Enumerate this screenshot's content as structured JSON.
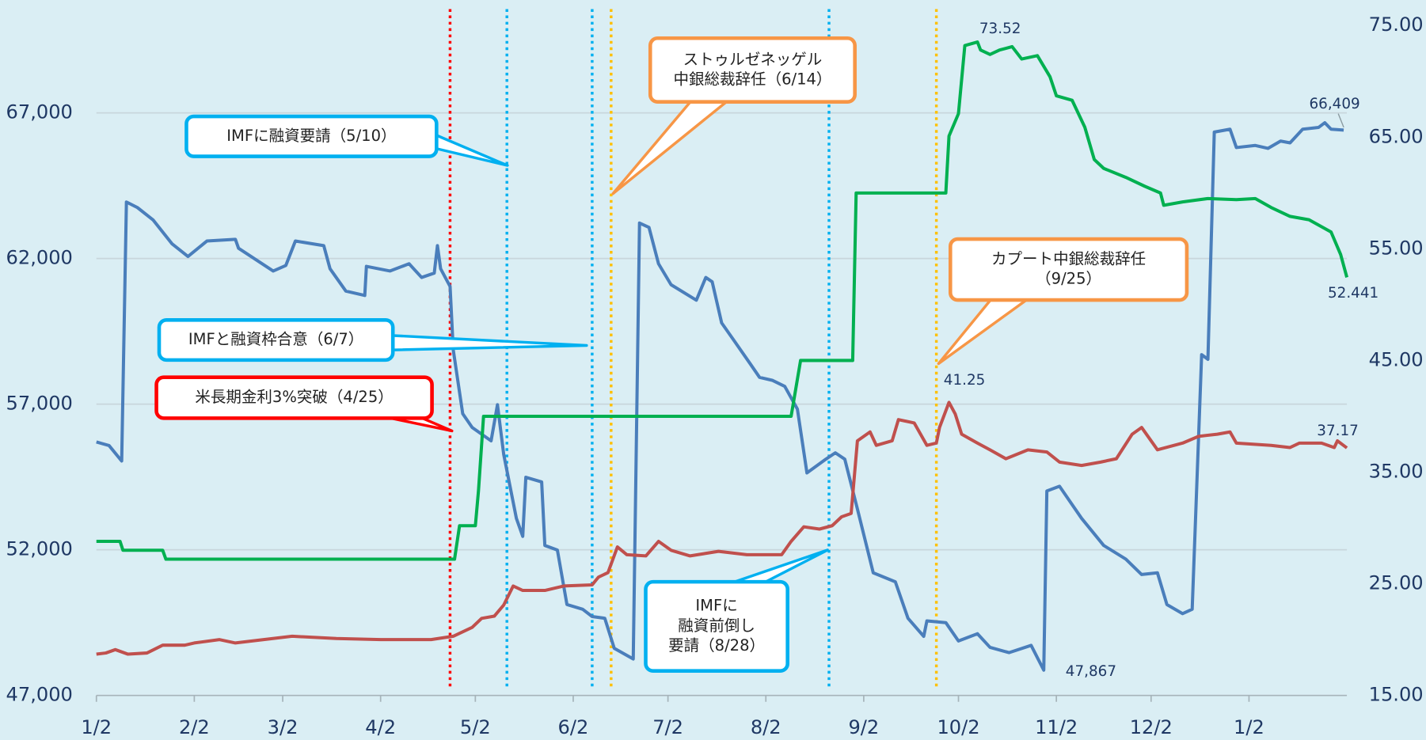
{
  "chart_data": {
    "type": "line",
    "xlim": [
      0,
      396
    ],
    "xticks": [
      {
        "value": 0,
        "label": "1/2"
      },
      {
        "value": 31,
        "label": "2/2"
      },
      {
        "value": 59,
        "label": "3/2"
      },
      {
        "value": 90,
        "label": "4/2"
      },
      {
        "value": 120,
        "label": "5/2"
      },
      {
        "value": 151,
        "label": "6/2"
      },
      {
        "value": 181,
        "label": "7/2"
      },
      {
        "value": 212,
        "label": "8/2"
      },
      {
        "value": 243,
        "label": "9/2"
      },
      {
        "value": 273,
        "label": "10/2"
      },
      {
        "value": 304,
        "label": "11/2"
      },
      {
        "value": 334,
        "label": "12/2"
      },
      {
        "value": 365,
        "label": "1/2"
      }
    ],
    "ylim": [
      47000,
      70000
    ],
    "yticks": [
      {
        "value": 47000,
        "label": "47,000"
      },
      {
        "value": 52000,
        "label": "52,000"
      },
      {
        "value": 57000,
        "label": "57,000"
      },
      {
        "value": 62000,
        "label": "62,000"
      },
      {
        "value": 67000,
        "label": "67,000"
      }
    ],
    "y2lim": [
      15,
      75
    ],
    "y2ticks": [
      {
        "value": 15,
        "label": "15.00"
      },
      {
        "value": 25,
        "label": "25.00"
      },
      {
        "value": 35,
        "label": "35.00"
      },
      {
        "value": 45,
        "label": "45.00"
      },
      {
        "value": 55,
        "label": "55.00"
      },
      {
        "value": 65,
        "label": "65.00"
      },
      {
        "value": 75,
        "label": "75.00"
      }
    ],
    "grid": true,
    "series": [
      {
        "color": "#4a7ebb",
        "axis": "y",
        "x": [
          0,
          4,
          8,
          9.5,
          13,
          18,
          24,
          29,
          35,
          44,
          45,
          56,
          60,
          63,
          72,
          74,
          79,
          85,
          85.5,
          93,
          99,
          103,
          107,
          108,
          109,
          112,
          113,
          116,
          119,
          125,
          127,
          129,
          133,
          135,
          136,
          141,
          142,
          146,
          149,
          154,
          157,
          161,
          164,
          170,
          172,
          175,
          178,
          182,
          190,
          193,
          195,
          198,
          202,
          207,
          210,
          214,
          218,
          222,
          225,
          231,
          234,
          237,
          241,
          246,
          253,
          257,
          262,
          263,
          269,
          273,
          279,
          283,
          289,
          296,
          300,
          301,
          305,
          312,
          319,
          326,
          331,
          336,
          339,
          344,
          347,
          350,
          352,
          354,
          359,
          361,
          367,
          371,
          375,
          378,
          382,
          387,
          389,
          391,
          395
        ],
        "values": [
          55700,
          55580,
          55050,
          63940,
          63750,
          63320,
          62500,
          62070,
          62600,
          62660,
          62350,
          61570,
          61760,
          62600,
          62440,
          61650,
          60880,
          60730,
          61730,
          61570,
          61820,
          61350,
          61500,
          62440,
          61650,
          61040,
          58860,
          56670,
          56200,
          55740,
          56980,
          55270,
          53080,
          52460,
          54490,
          54330,
          52150,
          51990,
          50120,
          49960,
          49710,
          49650,
          48620,
          48250,
          63220,
          63070,
          61820,
          61100,
          60570,
          61350,
          61200,
          59790,
          59170,
          58390,
          57920,
          57820,
          57610,
          56830,
          54640,
          55110,
          55330,
          55110,
          53400,
          51210,
          50900,
          49650,
          49030,
          49560,
          49500,
          48870,
          49120,
          48650,
          48470,
          48720,
          47867,
          54020,
          54180,
          53080,
          52150,
          51680,
          51150,
          51210,
          50120,
          49810,
          49960,
          58700,
          58540,
          66340,
          66440,
          65810,
          65880,
          65780,
          66030,
          65970,
          66440,
          66500,
          66660,
          66440,
          66409
        ],
        "value_labels": [
          null,
          null,
          null,
          null,
          null,
          null,
          null,
          null,
          null,
          null,
          null,
          null,
          null,
          null,
          null,
          null,
          null,
          null,
          null,
          null,
          null,
          null,
          null,
          null,
          null,
          null,
          null,
          null,
          null,
          null,
          null,
          null,
          null,
          null,
          null,
          null,
          null,
          null,
          null,
          null,
          null,
          null,
          null,
          null,
          null,
          null,
          null,
          null,
          null,
          null,
          null,
          null,
          null,
          null,
          null,
          null,
          null,
          null,
          null,
          null,
          null,
          null,
          null,
          null,
          null,
          null,
          null,
          null,
          null,
          null,
          null,
          null,
          null,
          null,
          "47,867",
          null,
          null,
          null,
          null,
          null,
          null,
          null,
          null,
          null,
          null,
          null,
          null,
          null,
          null,
          null,
          null,
          null,
          null,
          null,
          null,
          null,
          null,
          null,
          "66,409"
        ]
      },
      {
        "color": "#00b050",
        "axis": "y2",
        "x": [
          0,
          7.5,
          8.4,
          21,
          22,
          113.4,
          115,
          120,
          121,
          122.6,
          220,
          223,
          239.5,
          240.6,
          269,
          270,
          273,
          275,
          279,
          280,
          283,
          286,
          290,
          293,
          298,
          302,
          304,
          309,
          313,
          316,
          319,
          326,
          332,
          337,
          338,
          344,
          352,
          361,
          367,
          372,
          378,
          384,
          391,
          394,
          396
        ],
        "values": [
          28.8,
          28.8,
          28.0,
          28.0,
          27.2,
          27.2,
          30.2,
          30.2,
          33.3,
          40.0,
          40.0,
          45.0,
          45.0,
          60.0,
          60.0,
          65.1,
          67.1,
          73.2,
          73.52,
          72.8,
          72.4,
          72.8,
          73.1,
          72.0,
          72.3,
          70.4,
          68.7,
          68.3,
          65.9,
          63.0,
          62.2,
          61.4,
          60.6,
          60.0,
          58.9,
          59.2,
          59.5,
          59.4,
          59.5,
          58.7,
          57.9,
          57.6,
          56.5,
          54.5,
          52.441
        ],
        "value_labels": [
          null,
          null,
          null,
          null,
          null,
          null,
          null,
          null,
          null,
          null,
          null,
          null,
          null,
          null,
          null,
          null,
          null,
          null,
          "73.52",
          null,
          null,
          null,
          null,
          null,
          null,
          null,
          null,
          null,
          null,
          null,
          null,
          null,
          null,
          null,
          null,
          null,
          null,
          null,
          null,
          null,
          null,
          null,
          null,
          null,
          "52.441"
        ]
      },
      {
        "color": "#c0504d",
        "axis": "y2",
        "x": [
          0,
          3,
          6,
          10,
          16,
          21,
          28,
          31,
          39,
          44,
          53,
          62,
          76,
          90,
          106,
          113,
          119,
          122,
          126,
          129,
          132,
          135,
          142,
          148,
          157,
          159,
          162,
          165,
          168,
          174,
          178,
          182,
          188,
          197,
          206,
          217,
          220,
          224,
          229,
          233,
          236,
          239,
          241,
          245,
          247,
          252,
          254,
          259,
          263,
          266,
          267,
          270,
          272,
          274,
          279,
          283,
          288,
          295,
          301,
          305,
          312,
          318,
          323,
          328,
          331,
          336,
          344,
          349,
          355,
          359,
          361,
          372,
          378,
          381,
          388,
          392,
          393,
          396
        ],
        "values": [
          18.7,
          18.8,
          19.1,
          18.7,
          18.8,
          19.5,
          19.5,
          19.7,
          20.0,
          19.7,
          20.0,
          20.3,
          20.1,
          20.0,
          20.0,
          20.3,
          21.1,
          21.9,
          22.1,
          23.1,
          24.8,
          24.4,
          24.4,
          24.8,
          24.9,
          25.6,
          26.0,
          28.3,
          27.6,
          27.5,
          28.8,
          28.0,
          27.5,
          27.9,
          27.6,
          27.6,
          28.8,
          30.1,
          29.9,
          30.2,
          31.0,
          31.3,
          37.8,
          38.6,
          37.4,
          37.8,
          39.7,
          39.4,
          37.4,
          37.6,
          39.0,
          41.25,
          40.2,
          38.4,
          37.6,
          37.0,
          36.2,
          37.0,
          36.8,
          35.9,
          35.6,
          35.9,
          36.2,
          38.4,
          39.0,
          37.0,
          37.6,
          38.2,
          38.4,
          38.6,
          37.6,
          37.4,
          37.2,
          37.6,
          37.6,
          37.2,
          37.8,
          37.17
        ],
        "value_labels": [
          null,
          null,
          null,
          null,
          null,
          null,
          null,
          null,
          null,
          null,
          null,
          null,
          null,
          null,
          null,
          null,
          null,
          null,
          null,
          null,
          null,
          null,
          null,
          null,
          null,
          null,
          null,
          null,
          null,
          null,
          null,
          null,
          null,
          null,
          null,
          null,
          null,
          null,
          null,
          null,
          null,
          null,
          null,
          null,
          null,
          null,
          null,
          null,
          null,
          null,
          null,
          "41.25",
          null,
          null,
          null,
          null,
          null,
          null,
          null,
          null,
          null,
          null,
          null,
          null,
          null,
          null,
          null,
          null,
          null,
          null,
          null,
          null,
          null,
          null,
          null,
          null,
          null,
          "37.17"
        ]
      }
    ],
    "events": [
      {
        "x": 112,
        "line_color": "#ff0000",
        "box_color": "#ff0000",
        "label": [
          "米長期金利3%突破（4/25）"
        ]
      },
      {
        "x": 130,
        "line_color": "#00b0f0",
        "box_color": "#00b0f0",
        "label": [
          "IMFに融資要請（5/10）"
        ]
      },
      {
        "x": 157,
        "line_color": "#00b0f0",
        "box_color": "#00b0f0",
        "label": [
          "IMFと融資枠合意（6/7）"
        ]
      },
      {
        "x": 163,
        "line_color": "#ffc000",
        "box_color": "#f79646",
        "label": [
          "ストゥルゼネッゲル",
          "中銀総裁辞任（6/14）"
        ]
      },
      {
        "x": 232,
        "line_color": "#00b0f0",
        "box_color": "#00b0f0",
        "label": [
          "IMFに",
          "融資前倒し",
          "要請（8/28）"
        ]
      },
      {
        "x": 266,
        "line_color": "#ffc000",
        "box_color": "#f79646",
        "label": [
          "カプート中銀総裁辞任",
          "（9/25）"
        ]
      }
    ]
  }
}
